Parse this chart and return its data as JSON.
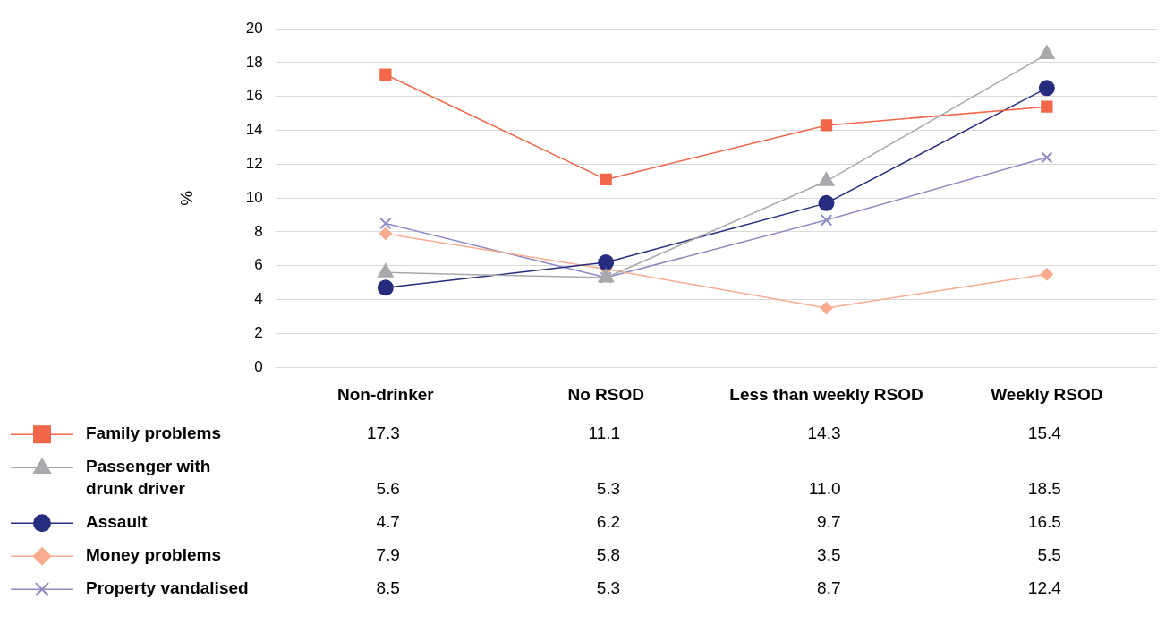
{
  "chart_data": {
    "type": "line",
    "ylabel": "%",
    "categories": [
      "Non-drinker",
      "No RSOD",
      "Less than weekly RSOD",
      "Weekly RSOD"
    ],
    "series": [
      {
        "name": "Family problems",
        "color": "#f26649",
        "marker": "square",
        "values": [
          17.3,
          11.1,
          14.3,
          15.4
        ],
        "value_labels": [
          "17.3",
          "11.1",
          "14.3",
          "15.4"
        ]
      },
      {
        "name": "Passenger with drunk driver",
        "color": "#a7a9ac",
        "marker": "triangle",
        "values": [
          5.6,
          5.3,
          11.0,
          18.5
        ],
        "value_labels": [
          "5.6",
          "5.3",
          "11.0",
          "18.5"
        ]
      },
      {
        "name": "Assault",
        "color": "#262d7f",
        "marker": "circle",
        "values": [
          4.7,
          6.2,
          9.7,
          16.5
        ],
        "value_labels": [
          "4.7",
          "6.2",
          "9.7",
          "16.5"
        ]
      },
      {
        "name": "Money problems",
        "color": "#f9ab8f",
        "marker": "diamond",
        "values": [
          7.9,
          5.8,
          3.5,
          5.5
        ],
        "value_labels": [
          "7.9",
          "5.8",
          "3.5",
          "5.5"
        ]
      },
      {
        "name": "Property vandalised",
        "color": "#8c8ac1",
        "marker": "cross",
        "values": [
          8.5,
          5.3,
          8.7,
          12.4
        ],
        "value_labels": [
          "8.5",
          "5.3",
          "8.7",
          "12.4"
        ]
      }
    ],
    "ylim": [
      0,
      20
    ],
    "yticks": [
      0,
      2,
      4,
      6,
      8,
      10,
      12,
      14,
      16,
      18,
      20
    ],
    "grid": "y",
    "legend": "bottom",
    "line_style": "solid"
  }
}
